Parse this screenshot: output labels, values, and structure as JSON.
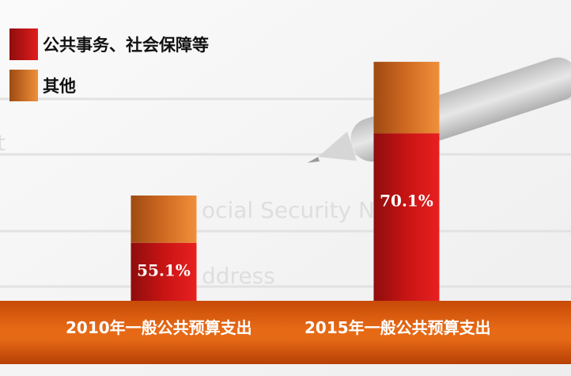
{
  "chart_data": {
    "type": "bar",
    "stacked": true,
    "categories": [
      "2010年一般公共预算支出",
      "2015年一般公共预算支出"
    ],
    "series": [
      {
        "name": "公共事务、社会保障等",
        "values": [
          55.1,
          70.1
        ],
        "color": "#d81c1c",
        "labels": [
          "55.1%",
          "70.1%"
        ]
      },
      {
        "name": "其他",
        "values": [
          44.9,
          29.9
        ],
        "color": "#e0782a"
      }
    ],
    "bar_total_heights": [
      1.0,
      2.27
    ],
    "legend_position": "top-left",
    "grid": false
  },
  "colors": {
    "band": "#e66a16",
    "red_dark": "#8e0d0d",
    "red": "#e21d1d",
    "orange_dark": "#9e4a12",
    "orange": "#f0903a"
  }
}
